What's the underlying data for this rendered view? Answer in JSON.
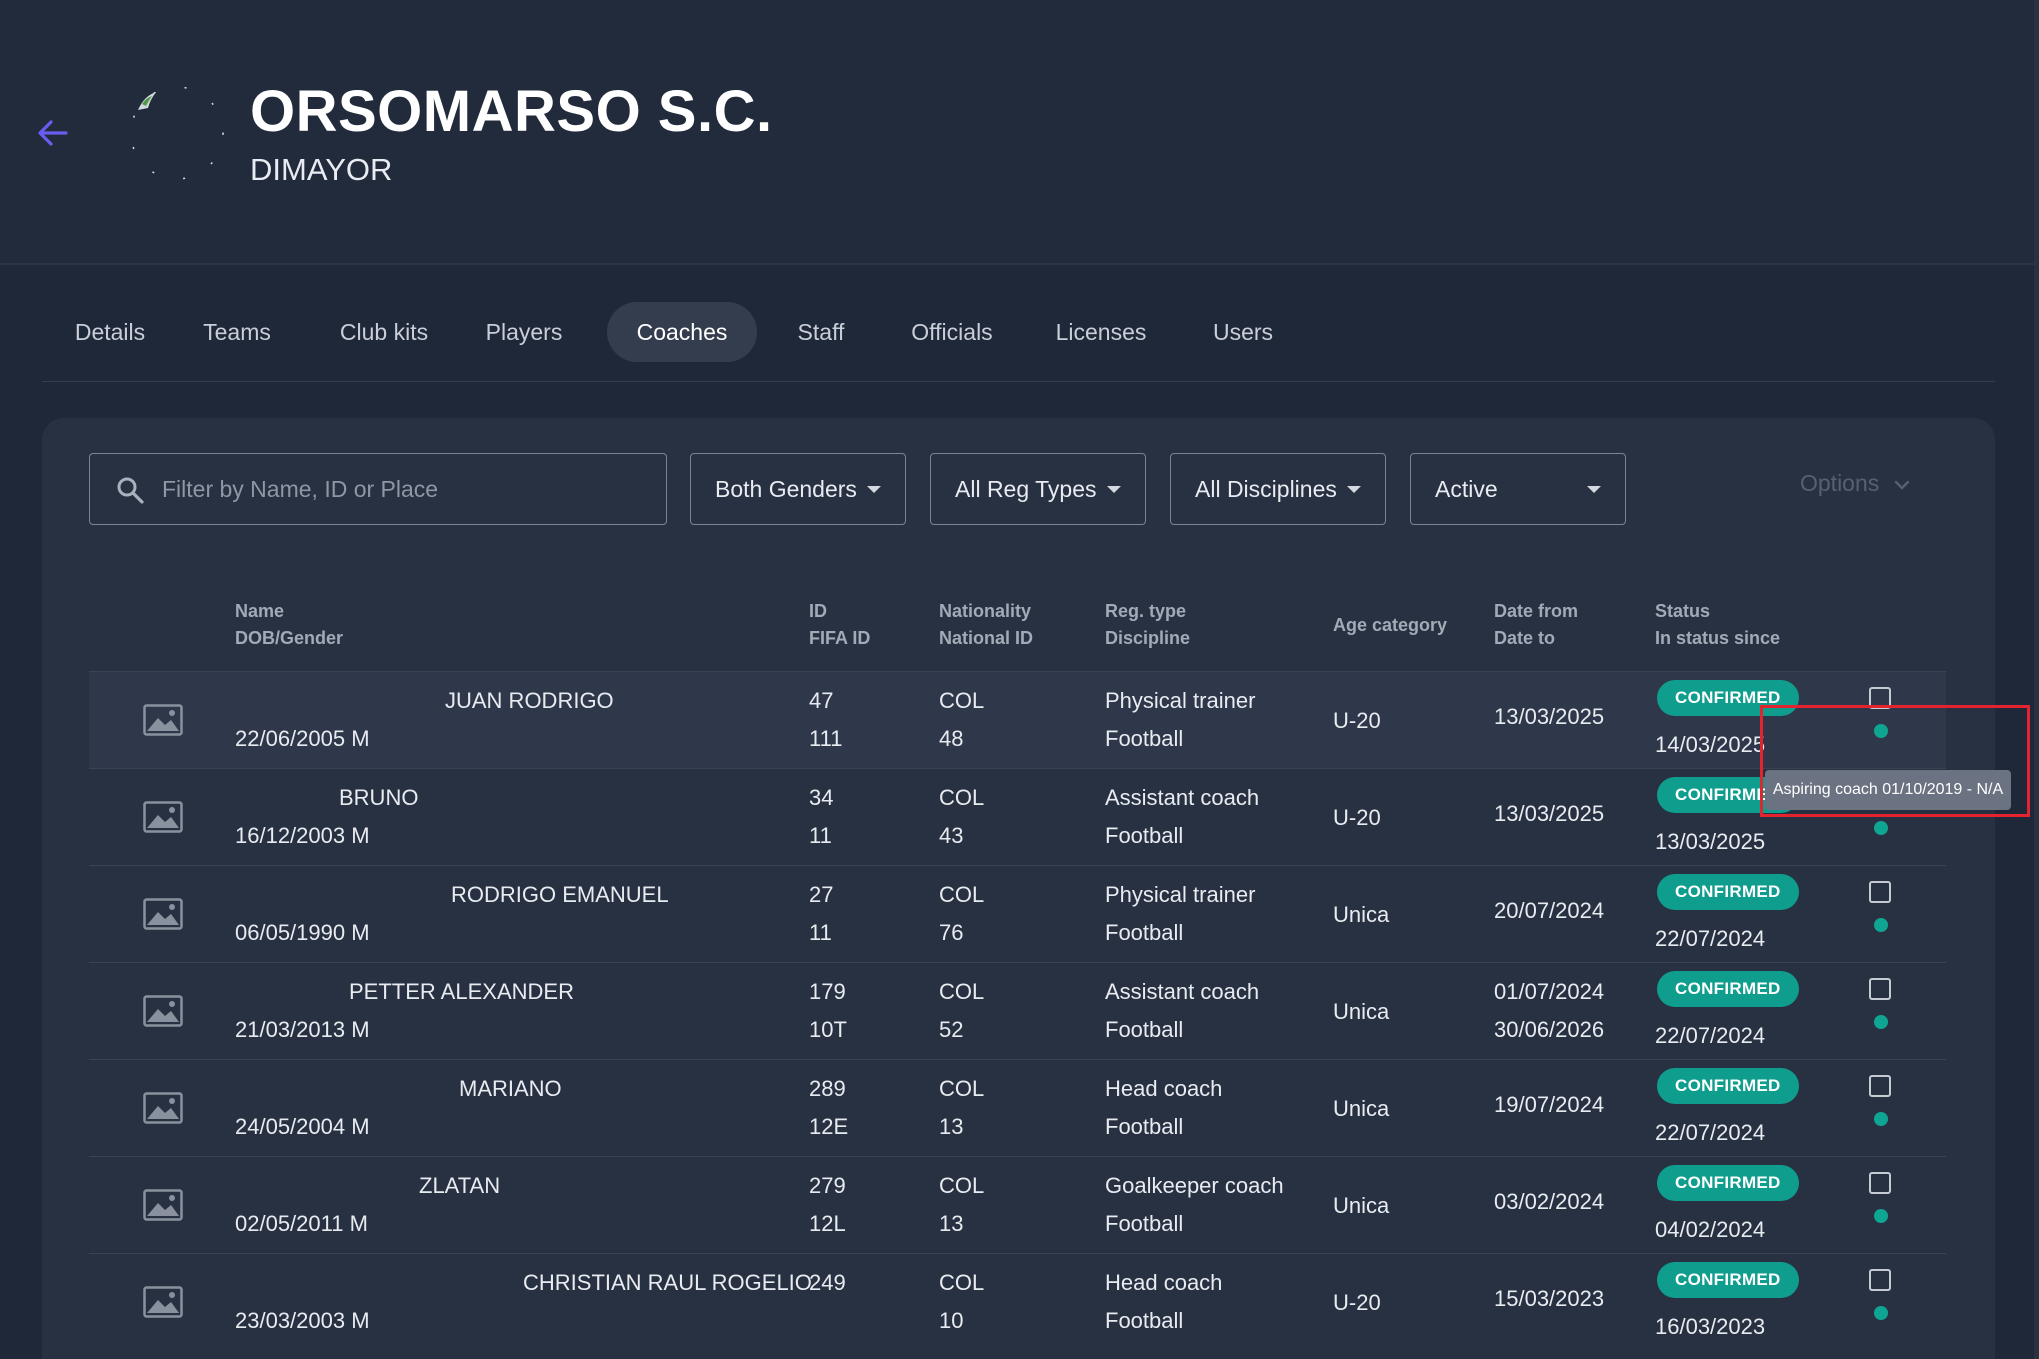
{
  "header": {
    "club_name": "ORSOMARSO S.C.",
    "league": "DIMAYOR"
  },
  "tabs": [
    {
      "label": "Details"
    },
    {
      "label": "Teams"
    },
    {
      "label": "Club kits"
    },
    {
      "label": "Players"
    },
    {
      "label": "Coaches",
      "active": true
    },
    {
      "label": "Staff"
    },
    {
      "label": "Officials"
    },
    {
      "label": "Licenses"
    },
    {
      "label": "Users"
    }
  ],
  "filters": {
    "search_placeholder": "Filter by Name, ID or Place",
    "gender": "Both Genders",
    "reg_types": "All Reg Types",
    "disciplines": "All Disciplines",
    "status": "Active",
    "options_label": "Options"
  },
  "columns": {
    "name": "Name",
    "dob_gender": "DOB/Gender",
    "id": "ID",
    "fifa_id": "FIFA ID",
    "nationality": "Nationality",
    "national_id": "National ID",
    "reg_type": "Reg. type",
    "discipline": "Discipline",
    "age_category": "Age category",
    "date_from": "Date from",
    "date_to": "Date to",
    "status": "Status",
    "in_status_since": "In status since"
  },
  "rows": [
    {
      "name": "JUAN RODRIGO",
      "dob": "22/06/2005 M",
      "id": "47",
      "fifa_id": "111",
      "nationality": "COL",
      "national_id": "48",
      "reg_type": "Physical trainer",
      "discipline": "Football",
      "age_category": "U-20",
      "date_from": "13/03/2025",
      "date_to": "",
      "status": "CONFIRMED",
      "status_since": "14/03/2025"
    },
    {
      "name": "BRUNO",
      "dob": "16/12/2003 M",
      "id": "34",
      "fifa_id": "11",
      "nationality": "COL",
      "national_id": "43",
      "reg_type": "Assistant coach",
      "discipline": "Football",
      "age_category": "U-20",
      "date_from": "13/03/2025",
      "date_to": "",
      "status": "CONFIRMED",
      "status_since": "13/03/2025"
    },
    {
      "name": "RODRIGO EMANUEL",
      "dob": "06/05/1990 M",
      "id": "27",
      "fifa_id": "11",
      "nationality": "COL",
      "national_id": "76",
      "reg_type": "Physical trainer",
      "discipline": "Football",
      "age_category": "Unica",
      "date_from": "20/07/2024",
      "date_to": "",
      "status": "CONFIRMED",
      "status_since": "22/07/2024"
    },
    {
      "name": "PETTER ALEXANDER",
      "dob": "21/03/2013 M",
      "id": "179",
      "fifa_id": "10T",
      "nationality": "COL",
      "national_id": "52",
      "reg_type": "Assistant coach",
      "discipline": "Football",
      "age_category": "Unica",
      "date_from": "01/07/2024",
      "date_to": "30/06/2026",
      "status": "CONFIRMED",
      "status_since": "22/07/2024"
    },
    {
      "name": "MARIANO",
      "dob": "24/05/2004 M",
      "id": "289",
      "fifa_id": "12E",
      "nationality": "COL",
      "national_id": "13",
      "reg_type": "Head coach",
      "discipline": "Football",
      "age_category": "Unica",
      "date_from": "19/07/2024",
      "date_to": "",
      "status": "CONFIRMED",
      "status_since": "22/07/2024"
    },
    {
      "name": "ZLATAN",
      "dob": "02/05/2011 M",
      "id": "279",
      "fifa_id": "12L",
      "nationality": "COL",
      "national_id": "13",
      "reg_type": "Goalkeeper coach",
      "discipline": "Football",
      "age_category": "Unica",
      "date_from": "03/02/2024",
      "date_to": "",
      "status": "CONFIRMED",
      "status_since": "04/02/2024"
    },
    {
      "name": "CHRISTIAN RAUL ROGELIO",
      "dob": "23/03/2003 M",
      "id": "249",
      "fifa_id": "",
      "nationality": "COL",
      "national_id": "10",
      "reg_type": "Head coach",
      "discipline": "Football",
      "age_category": "U-20",
      "date_from": "15/03/2023",
      "date_to": "",
      "status": "CONFIRMED",
      "status_since": "16/03/2023"
    }
  ],
  "tooltip": "Aspiring coach 01/10/2019 - N/A",
  "colors": {
    "background": "#1f2839",
    "panel": "#283142",
    "accent": "#6b5cf0",
    "status_confirmed": "#0f9d8e",
    "highlight": "#e4232f"
  },
  "icons": {
    "back": "arrow-left-icon",
    "search": "search-icon",
    "avatar": "image-placeholder-icon",
    "caret": "caret-down-icon",
    "options": "chevron-down-icon"
  }
}
